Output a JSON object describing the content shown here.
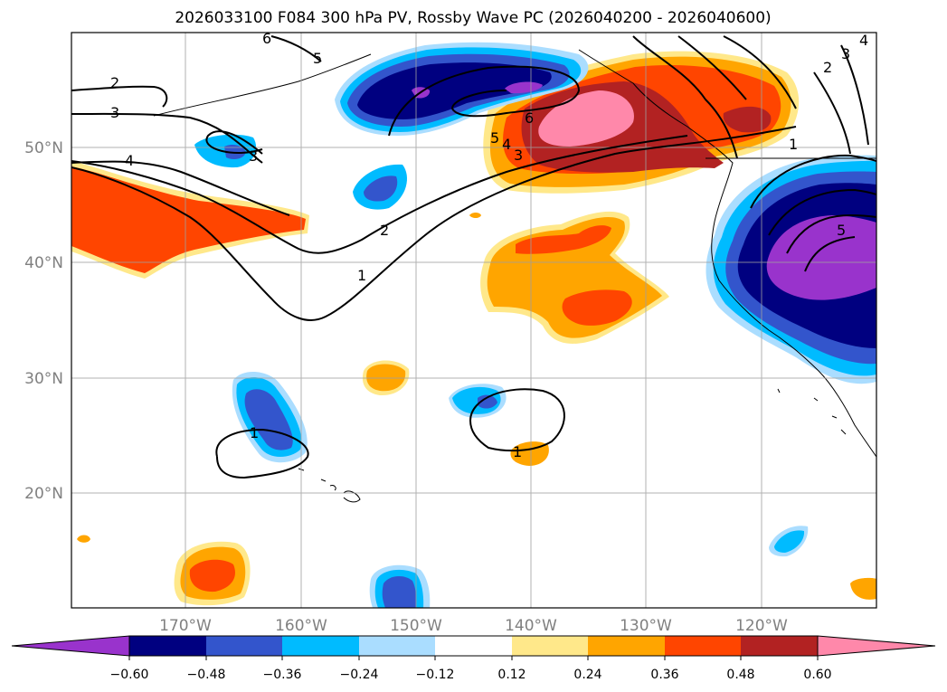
{
  "title": "2026033100 F084 300 hPa PV, Rossby Wave PC (2026040200 - 2026040600)",
  "map": {
    "lat_labels": [
      "50°N",
      "40°N",
      "30°N",
      "20°N"
    ],
    "lon_labels": [
      "170°W",
      "160°W",
      "150°W",
      "140°W",
      "130°W",
      "120°W"
    ],
    "contour_labels": [
      "6",
      "5",
      "2",
      "3",
      "4",
      "3",
      "2",
      "1",
      "6",
      "5",
      "4",
      "3",
      "1",
      "1",
      "5",
      "1",
      "2",
      "3",
      "4"
    ]
  },
  "colorbar": {
    "ticks": [
      "−0.60",
      "−0.48",
      "−0.36",
      "−0.24",
      "−0.12",
      "0.12",
      "0.24",
      "0.36",
      "0.48",
      "0.60"
    ],
    "colors": [
      "#9933cc",
      "#000080",
      "#3355cc",
      "#00bbff",
      "#aaddff",
      "#ffffff",
      "#ffe88a",
      "#ffa500",
      "#ff4500",
      "#b22222",
      "#ff88aa"
    ]
  }
}
